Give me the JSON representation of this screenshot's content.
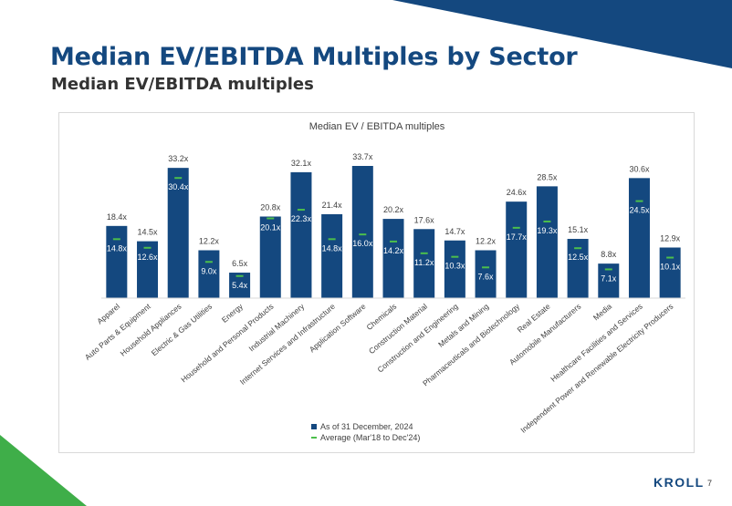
{
  "header": {
    "title": "Median EV/EBITDA Multiples by Sector",
    "subtitle": "Median EV/EBITDA multiples"
  },
  "footer": {
    "brand": "KROLL",
    "page_number": "7"
  },
  "colors": {
    "bar": "#14487f",
    "average_marker": "#4cbf4c",
    "title": "#14487f",
    "corner_blue": "#14487f",
    "corner_green": "#3fae49"
  },
  "chart_data": {
    "type": "bar",
    "title": "Median EV / EBITDA multiples",
    "xlabel": "",
    "ylabel": "",
    "ylim": [
      0,
      36
    ],
    "grid": false,
    "legend_position": "bottom",
    "categories": [
      "Apparel",
      "Auto Parts & Equipment",
      "Household Appliances",
      "Electric & Gas Utilities",
      "Energy",
      "Household and Personal Products",
      "Industrial Machinery",
      "Internet Services and Infrastructure",
      "Application Software",
      "Chemicals",
      "Construction Material",
      "Construction and Engineering",
      "Metals and Mining",
      "Pharmaceuticals and Biotechnology",
      "Real Estate",
      "Automobile Manufacturers",
      "Media",
      "Healthcare Facilities and Services",
      "Independent Power and Renewable Electricity Producers"
    ],
    "series": [
      {
        "name": "As of 31 December, 2024",
        "kind": "bar",
        "values": [
          18.4,
          14.5,
          33.2,
          12.2,
          6.5,
          20.8,
          32.1,
          21.4,
          33.7,
          20.2,
          17.6,
          14.7,
          12.2,
          24.6,
          28.5,
          15.1,
          8.8,
          30.6,
          12.9
        ],
        "labels": [
          "18.4x",
          "14.5x",
          "33.2x",
          "12.2x",
          "6.5x",
          "20.8x",
          "32.1x",
          "21.4x",
          "33.7x",
          "20.2x",
          "17.6x",
          "14.7x",
          "12.2x",
          "24.6x",
          "28.5x",
          "15.1x",
          "8.8x",
          "30.6x",
          "12.9x"
        ]
      },
      {
        "name": "Average (Mar'18 to Dec'24)",
        "kind": "marker",
        "values": [
          14.8,
          12.6,
          30.4,
          9.0,
          5.4,
          20.1,
          22.3,
          14.8,
          16.0,
          14.2,
          11.2,
          10.3,
          7.6,
          17.7,
          19.3,
          12.5,
          7.1,
          24.5,
          10.1
        ],
        "labels": [
          "14.8x",
          "12.6x",
          "30.4x",
          "9.0x",
          "5.4x",
          "20.1x",
          "22.3x",
          "14.8x",
          "16.0x",
          "14.2x",
          "11.2x",
          "10.3x",
          "7.6x",
          "17.7x",
          "19.3x",
          "12.5x",
          "7.1x",
          "24.5x",
          "10.1x"
        ]
      }
    ]
  }
}
